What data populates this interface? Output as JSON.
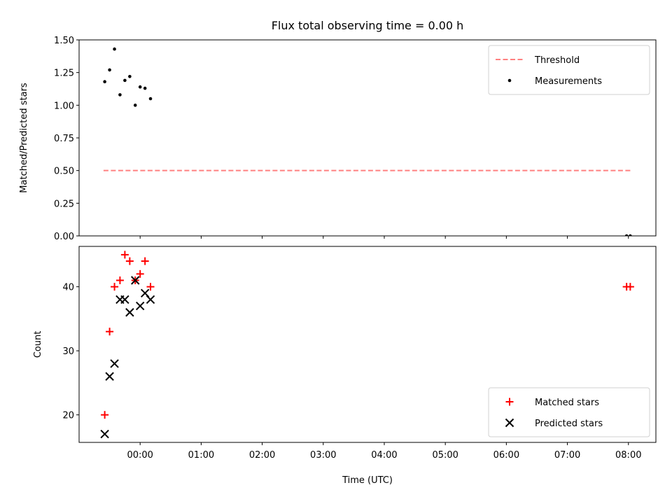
{
  "chart_data": {
    "title": "Flux total observing time = 0.00 h",
    "xlabel": "Time (UTC)",
    "x_unit": "hours (UTC)",
    "xlim": [
      -1.0,
      8.45
    ],
    "x_ticks": [
      {
        "value": 0,
        "label": "00:00"
      },
      {
        "value": 1,
        "label": "01:00"
      },
      {
        "value": 2,
        "label": "02:00"
      },
      {
        "value": 3,
        "label": "03:00"
      },
      {
        "value": 4,
        "label": "04:00"
      },
      {
        "value": 5,
        "label": "05:00"
      },
      {
        "value": 6,
        "label": "06:00"
      },
      {
        "value": 7,
        "label": "07:00"
      },
      {
        "value": 8,
        "label": "08:00"
      }
    ],
    "panels": [
      {
        "type": "scatter",
        "ylabel": "Matched/Predicted stars",
        "ylim": [
          0,
          1.5
        ],
        "y_ticks": [
          {
            "value": 0,
            "label": "0.00"
          },
          {
            "value": 0.25,
            "label": "0.25"
          },
          {
            "value": 0.5,
            "label": "0.50"
          },
          {
            "value": 0.75,
            "label": "0.75"
          },
          {
            "value": 1.0,
            "label": "1.00"
          },
          {
            "value": 1.25,
            "label": "1.25"
          },
          {
            "value": 1.5,
            "label": "1.50"
          }
        ],
        "legend_position": "top-right",
        "series": [
          {
            "name": "Threshold",
            "kind": "dashed-line",
            "color": "#ff8080",
            "x": [
              -0.6,
              8.03
            ],
            "y": [
              0.5,
              0.5
            ]
          },
          {
            "name": "Measurements",
            "kind": "dot",
            "color": "#000000",
            "x": [
              -0.58,
              -0.5,
              -0.42,
              -0.33,
              -0.25,
              -0.17,
              -0.08,
              0.0,
              0.08,
              0.17,
              7.97,
              8.03
            ],
            "y": [
              1.18,
              1.27,
              1.43,
              1.08,
              1.19,
              1.22,
              1.0,
              1.14,
              1.13,
              1.05,
              0.0,
              0.0
            ]
          }
        ]
      },
      {
        "type": "scatter",
        "ylabel": "Count",
        "ylim": [
          15.7,
          46.3
        ],
        "y_ticks": [
          {
            "value": 20,
            "label": "20"
          },
          {
            "value": 30,
            "label": "30"
          },
          {
            "value": 40,
            "label": "40"
          }
        ],
        "legend_position": "bottom-right",
        "series": [
          {
            "name": "Matched stars",
            "kind": "plus",
            "color": "#ff0000",
            "x": [
              -0.58,
              -0.5,
              -0.42,
              -0.33,
              -0.25,
              -0.17,
              -0.08,
              0.0,
              0.08,
              0.17,
              7.97,
              8.03
            ],
            "y": [
              20,
              33,
              40,
              41,
              45,
              44,
              41,
              42,
              44,
              40,
              40,
              40
            ]
          },
          {
            "name": "Predicted stars",
            "kind": "x",
            "color": "#000000",
            "x": [
              -0.58,
              -0.5,
              -0.42,
              -0.33,
              -0.25,
              -0.17,
              -0.08,
              0.0,
              0.08,
              0.17
            ],
            "y": [
              17,
              26,
              28,
              38,
              38,
              36,
              41,
              37,
              39,
              38
            ]
          }
        ]
      }
    ]
  }
}
